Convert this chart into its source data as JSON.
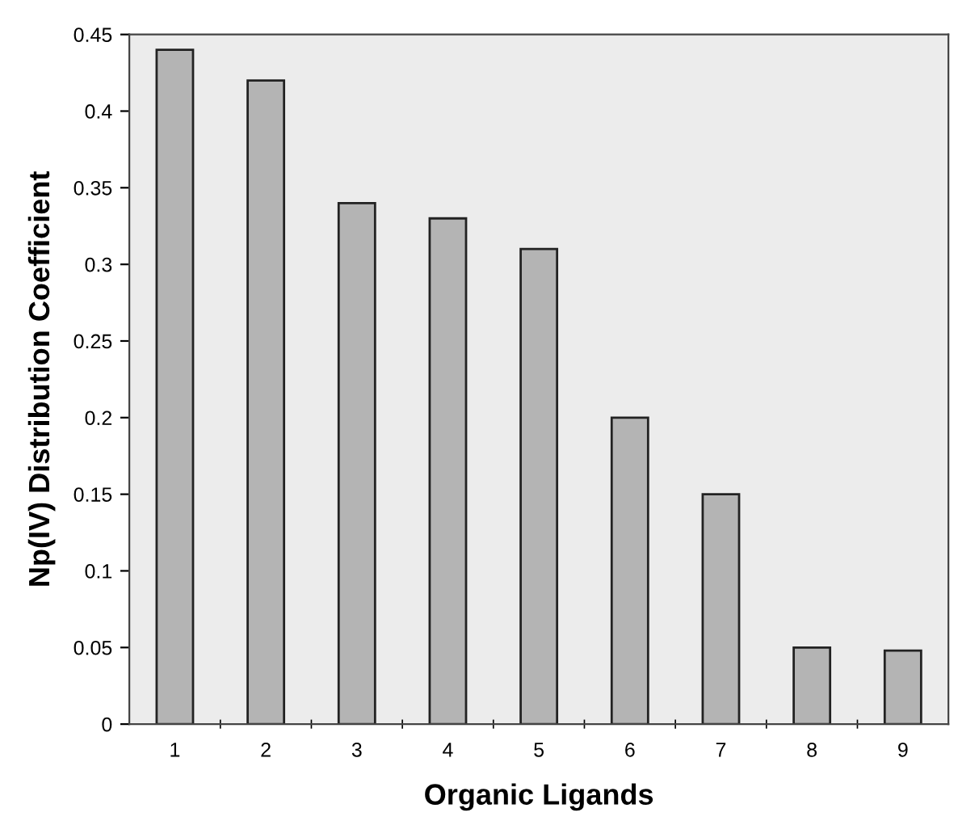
{
  "chart_data": {
    "type": "bar",
    "xlabel": "Organic Ligands",
    "ylabel": "Np(IV) Distribution Coefficient",
    "categories": [
      "1",
      "2",
      "3",
      "4",
      "5",
      "6",
      "7",
      "8",
      "9"
    ],
    "values": [
      0.44,
      0.42,
      0.34,
      0.33,
      0.31,
      0.2,
      0.15,
      0.05,
      0.048
    ],
    "color": "#b4b4b4",
    "ylim": [
      0,
      0.45
    ],
    "yticks": [
      0,
      0.05,
      0.1,
      0.15,
      0.2,
      0.25,
      0.3,
      0.35,
      0.4,
      0.45
    ],
    "grid": false,
    "legend": false
  }
}
